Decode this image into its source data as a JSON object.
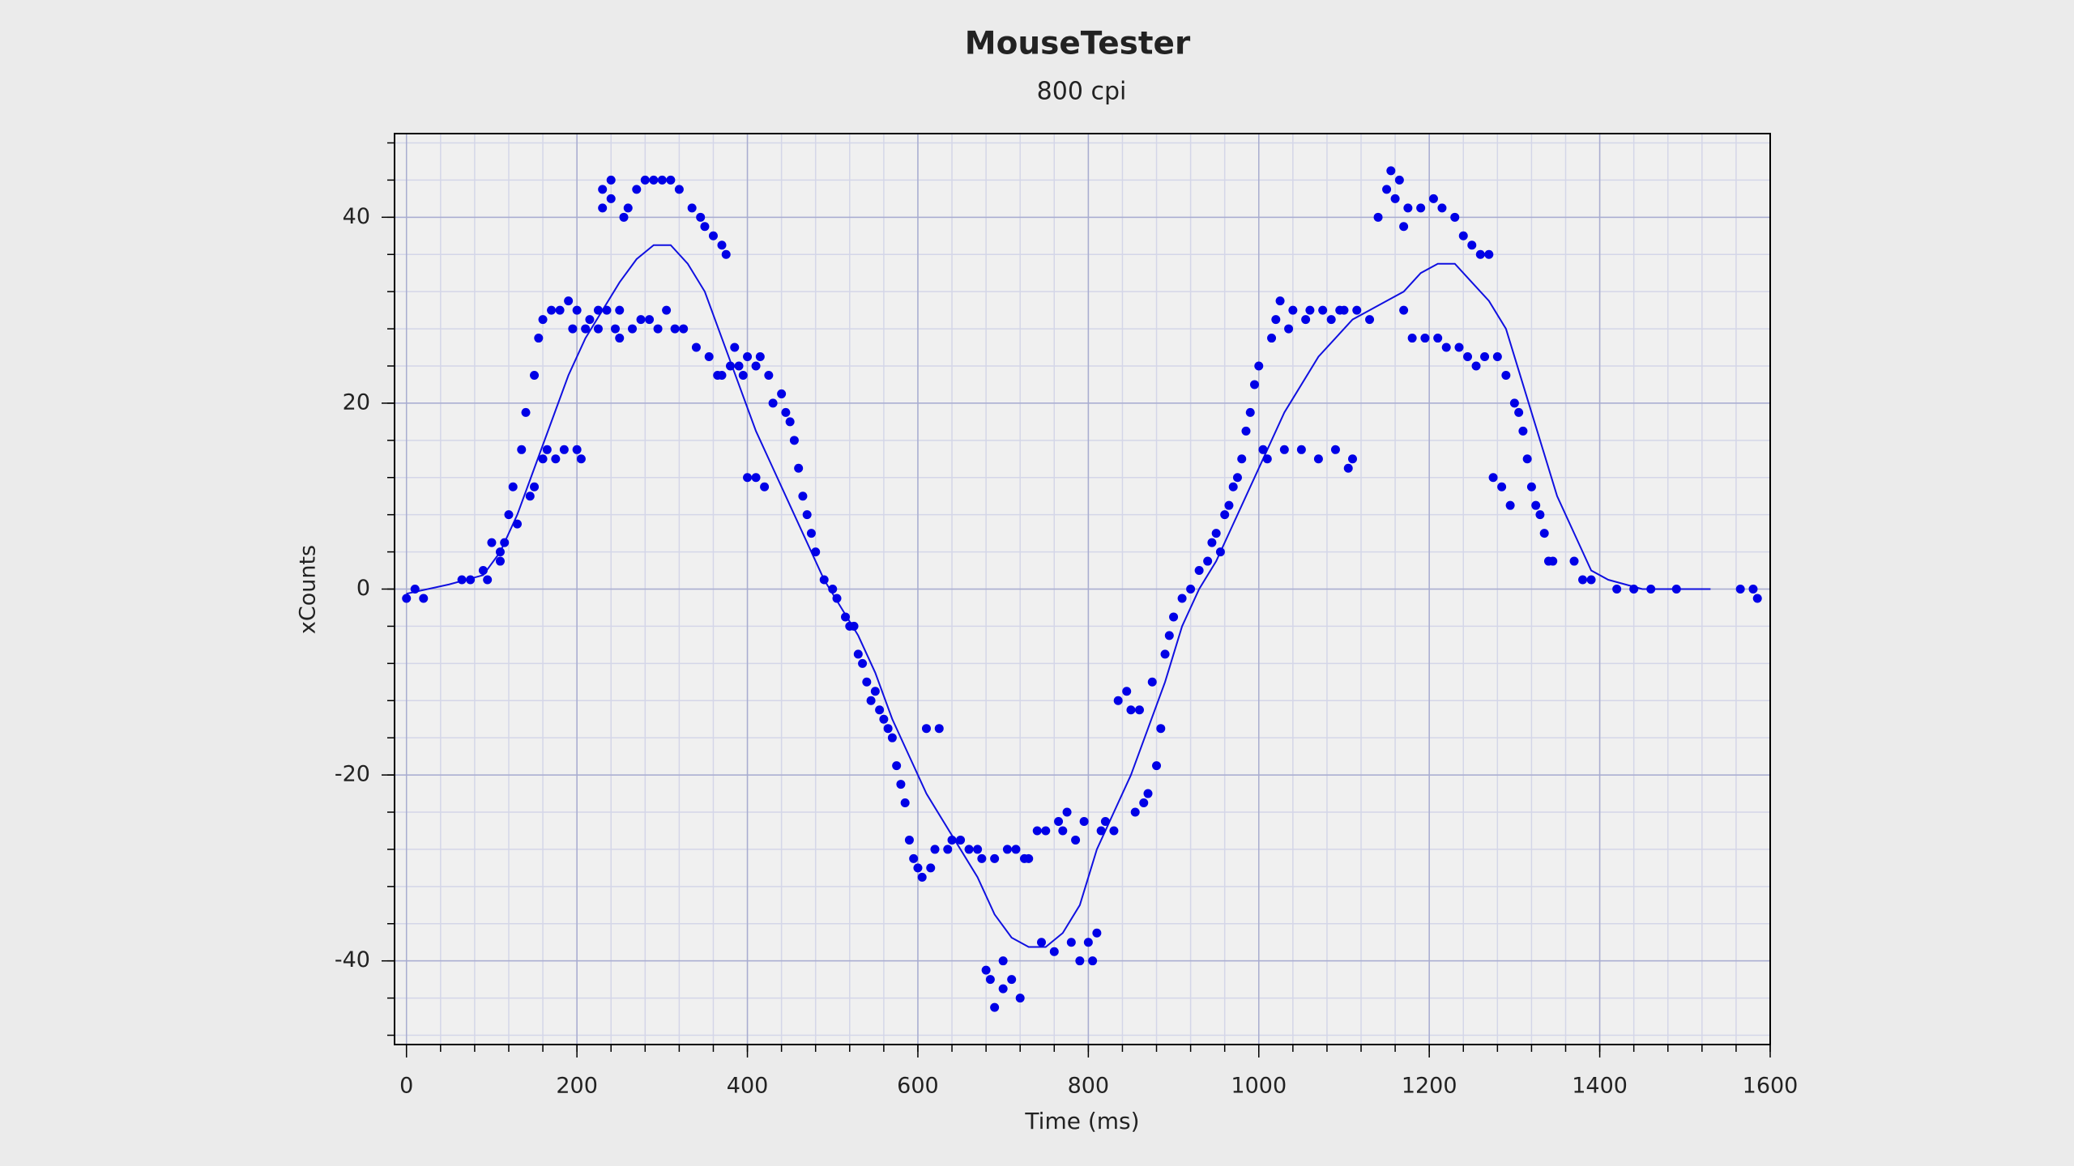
{
  "chart_data": {
    "type": "scatter",
    "title": "MouseTester",
    "subtitle": "800 cpi",
    "x_label": "Time (ms)",
    "y_label": "xCounts",
    "xlim": [
      -14,
      1600
    ],
    "ylim": [
      -49,
      49
    ],
    "xticks": [
      0,
      200,
      400,
      600,
      800,
      1000,
      1200,
      1400,
      1600
    ],
    "yticks": [
      -40,
      -20,
      0,
      20,
      40
    ],
    "xminorticks": [
      0,
      40,
      80,
      120,
      160,
      200,
      240,
      280,
      320,
      360,
      400,
      440,
      480,
      520,
      560,
      600,
      640,
      680,
      720,
      760,
      800,
      840,
      880,
      920,
      960,
      1000,
      1040,
      1080,
      1120,
      1160,
      1200,
      1240,
      1280,
      1320,
      1360,
      1400,
      1440,
      1480,
      1520,
      1560,
      1600
    ],
    "yminorticks": [
      -48,
      -44,
      -40,
      -36,
      -32,
      -28,
      -24,
      -20,
      -16,
      -12,
      -8,
      -4,
      0,
      4,
      8,
      12,
      16,
      20,
      24,
      28,
      32,
      36,
      40,
      44,
      48
    ],
    "grid": true,
    "series": [
      {
        "type": "line",
        "color": "#1010e0",
        "x": [
          0,
          50,
          90,
          110,
          130,
          150,
          170,
          190,
          210,
          230,
          250,
          270,
          290,
          310,
          330,
          350,
          370,
          390,
          410,
          430,
          450,
          470,
          490,
          510,
          530,
          550,
          570,
          590,
          610,
          630,
          650,
          670,
          690,
          710,
          730,
          750,
          770,
          790,
          810,
          830,
          850,
          870,
          890,
          910,
          930,
          950,
          970,
          990,
          1010,
          1030,
          1050,
          1070,
          1090,
          1110,
          1130,
          1150,
          1170,
          1190,
          1210,
          1230,
          1250,
          1270,
          1290,
          1310,
          1330,
          1350,
          1370,
          1390,
          1410,
          1450,
          1500,
          1530
        ],
        "values": [
          -0.5,
          0.5,
          1.5,
          4,
          8,
          13,
          18,
          23,
          27,
          30,
          33,
          35.5,
          37,
          37,
          35,
          32,
          27,
          22,
          17,
          13,
          9,
          5,
          1,
          -2,
          -5,
          -9,
          -14,
          -18,
          -22,
          -25,
          -28,
          -31,
          -35,
          -37.5,
          -38.5,
          -38.5,
          -37,
          -34,
          -28,
          -24,
          -20,
          -15,
          -10,
          -4,
          0,
          3,
          7,
          11,
          15,
          19,
          22,
          25,
          27,
          29,
          30,
          31,
          32,
          34,
          35,
          35,
          33,
          31,
          28,
          22,
          16,
          10,
          6,
          2,
          1,
          0,
          0,
          0
        ]
      },
      {
        "type": "scatter",
        "color": "#0000e6",
        "x": [
          0,
          10,
          20,
          65,
          75,
          90,
          95,
          100,
          110,
          110,
          115,
          120,
          125,
          130,
          135,
          140,
          145,
          150,
          150,
          155,
          160,
          160,
          165,
          170,
          175,
          180,
          185,
          190,
          195,
          200,
          200,
          205,
          210,
          215,
          225,
          225,
          230,
          230,
          235,
          240,
          240,
          245,
          250,
          250,
          255,
          260,
          265,
          270,
          275,
          280,
          285,
          290,
          295,
          300,
          305,
          310,
          315,
          320,
          325,
          335,
          340,
          345,
          350,
          355,
          360,
          365,
          370,
          370,
          375,
          380,
          385,
          390,
          395,
          400,
          400,
          410,
          410,
          415,
          420,
          425,
          430,
          440,
          445,
          450,
          455,
          460,
          465,
          470,
          475,
          480,
          490,
          500,
          505,
          515,
          520,
          525,
          530,
          535,
          540,
          545,
          550,
          555,
          560,
          565,
          570,
          575,
          580,
          585,
          590,
          595,
          600,
          605,
          610,
          615,
          620,
          625,
          635,
          640,
          650,
          660,
          670,
          675,
          680,
          685,
          690,
          690,
          700,
          700,
          705,
          710,
          715,
          720,
          725,
          730,
          740,
          745,
          750,
          760,
          765,
          770,
          775,
          780,
          785,
          790,
          795,
          800,
          805,
          810,
          815,
          820,
          830,
          835,
          845,
          850,
          855,
          860,
          865,
          870,
          875,
          880,
          885,
          890,
          895,
          900,
          910,
          920,
          930,
          940,
          945,
          950,
          955,
          960,
          965,
          970,
          975,
          980,
          985,
          990,
          995,
          1000,
          1005,
          1010,
          1015,
          1020,
          1025,
          1030,
          1035,
          1040,
          1050,
          1055,
          1060,
          1070,
          1075,
          1085,
          1090,
          1095,
          1100,
          1105,
          1110,
          1115,
          1130,
          1140,
          1150,
          1155,
          1160,
          1165,
          1170,
          1170,
          1175,
          1180,
          1190,
          1195,
          1205,
          1210,
          1215,
          1220,
          1230,
          1235,
          1240,
          1245,
          1250,
          1255,
          1260,
          1265,
          1270,
          1275,
          1280,
          1285,
          1290,
          1295,
          1300,
          1305,
          1310,
          1315,
          1320,
          1325,
          1330,
          1335,
          1340,
          1345,
          1370,
          1380,
          1390,
          1420,
          1440,
          1460,
          1490,
          1565,
          1580,
          1585
        ],
        "values": [
          -1,
          0,
          -1,
          1,
          1,
          2,
          1,
          5,
          4,
          3,
          5,
          8,
          11,
          7,
          15,
          19,
          10,
          11,
          23,
          27,
          14,
          29,
          15,
          30,
          14,
          30,
          15,
          31,
          28,
          30,
          15,
          14,
          28,
          29,
          30,
          28,
          43,
          41,
          30,
          42,
          44,
          28,
          30,
          27,
          40,
          41,
          28,
          43,
          29,
          44,
          29,
          44,
          28,
          44,
          30,
          44,
          28,
          43,
          28,
          41,
          26,
          40,
          39,
          25,
          38,
          23,
          37,
          23,
          36,
          24,
          26,
          24,
          23,
          12,
          25,
          24,
          12,
          25,
          11,
          23,
          20,
          21,
          19,
          18,
          16,
          13,
          10,
          8,
          6,
          4,
          1,
          0,
          -1,
          -3,
          -4,
          -4,
          -7,
          -8,
          -10,
          -12,
          -11,
          -13,
          -14,
          -15,
          -16,
          -19,
          -21,
          -23,
          -27,
          -29,
          -30,
          -31,
          -15,
          -30,
          -28,
          -15,
          -28,
          -27,
          -27,
          -28,
          -28,
          -29,
          -41,
          -42,
          -45,
          -29,
          -40,
          -43,
          -28,
          -42,
          -28,
          -44,
          -29,
          -29,
          -26,
          -38,
          -26,
          -39,
          -25,
          -26,
          -24,
          -38,
          -27,
          -40,
          -25,
          -38,
          -40,
          -37,
          -26,
          -25,
          -26,
          -12,
          -11,
          -13,
          -24,
          -13,
          -23,
          -22,
          -10,
          -19,
          -15,
          -7,
          -5,
          -3,
          -1,
          0,
          2,
          3,
          5,
          6,
          4,
          8,
          9,
          11,
          12,
          14,
          17,
          19,
          22,
          24,
          15,
          14,
          27,
          29,
          31,
          15,
          28,
          30,
          15,
          29,
          30,
          14,
          30,
          29,
          15,
          30,
          30,
          13,
          14,
          30,
          29,
          40,
          43,
          45,
          42,
          44,
          30,
          39,
          41,
          27,
          41,
          27,
          42,
          27,
          41,
          26,
          40,
          26,
          38,
          25,
          37,
          24,
          36,
          25,
          36,
          12,
          25,
          11,
          23,
          9,
          20,
          19,
          17,
          14,
          11,
          9,
          8,
          6,
          3,
          3,
          3,
          1,
          1,
          0,
          0,
          0,
          0,
          0,
          0,
          -1
        ]
      }
    ]
  }
}
